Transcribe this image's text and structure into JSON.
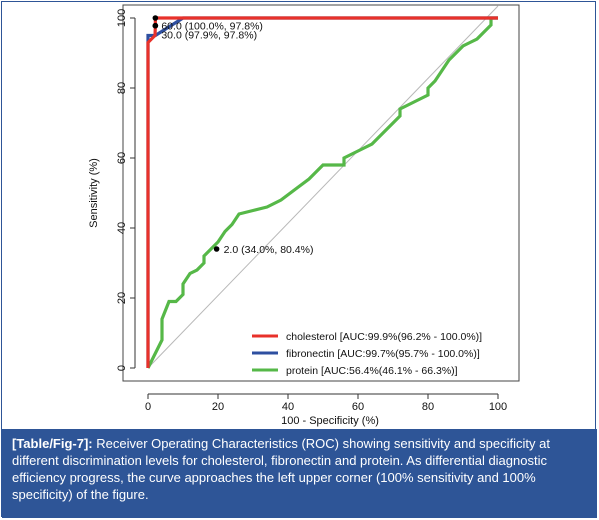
{
  "caption": {
    "label": "[Table/Fig-7]:",
    "text": " Receiver Operating Characteristics (ROC) showing sensitivity and specificity at different discrimination levels for cholesterol, fibronectin and protein. As differential diagnostic efficiency progress, the curve approaches the left upper corner (100% sensitivity and 100% specificity) of the figure."
  },
  "chart_data": {
    "type": "line",
    "title": "",
    "xlabel": "100 - Specificity (%)",
    "ylabel": "Sensitivity (%)",
    "xlim": [
      0,
      100
    ],
    "ylim": [
      0,
      100
    ],
    "xticks": [
      0,
      20,
      40,
      60,
      80,
      100
    ],
    "yticks": [
      0,
      20,
      40,
      60,
      80,
      100
    ],
    "legend_position": "bottom-right",
    "series": [
      {
        "name": "cholesterol [AUC:99.9%(96.2% - 100.0%)]",
        "color": "#e8312a",
        "x": [
          0,
          0,
          2,
          2.1,
          2.1,
          10,
          100
        ],
        "y": [
          0,
          93,
          95,
          97.8,
          100,
          100,
          100
        ]
      },
      {
        "name": "fibronectin [AUC:99.7%(95.7% - 100.0%)]",
        "color": "#2e4fa0",
        "x": [
          0,
          0,
          0,
          2.1,
          10,
          100
        ],
        "y": [
          0,
          95,
          95,
          95,
          100,
          100
        ]
      },
      {
        "name": "protein [AUC:56.4%(46.1% - 66.3%)]",
        "color": "#56b848",
        "x": [
          0,
          4,
          4,
          6,
          8,
          10,
          10,
          12,
          14,
          16,
          16,
          18,
          20,
          22,
          24,
          26,
          30,
          34,
          38,
          42,
          46,
          48,
          50,
          56,
          56,
          60,
          64,
          66,
          68,
          70,
          72,
          72,
          76,
          80,
          80,
          82,
          84,
          86,
          88,
          90,
          92,
          94,
          96,
          98,
          98,
          100
        ],
        "y": [
          0,
          8,
          14,
          19,
          19,
          21,
          24,
          27,
          28,
          30,
          32,
          34,
          36,
          39,
          41,
          44,
          45,
          46,
          48,
          51,
          54,
          56,
          58,
          58,
          60,
          62,
          64,
          66,
          68,
          70,
          72,
          74,
          76,
          78,
          80,
          82,
          85,
          88,
          90,
          92,
          93,
          94,
          96,
          98,
          100,
          100
        ]
      }
    ],
    "diagonal": {
      "color": "#b8b8b8"
    },
    "annotations": [
      {
        "x": 2.1,
        "y": 100,
        "text": ""
      },
      {
        "x": 2.1,
        "y": 97.8,
        "text": "60.0 (100.0%, 97.8%)"
      },
      {
        "x": 2.1,
        "y": 97.8,
        "text": "30.0 (97.9%, 97.8%)"
      },
      {
        "x": 19.6,
        "y": 34.0,
        "text": "2.0 (34.0%, 80.4%)"
      }
    ]
  }
}
